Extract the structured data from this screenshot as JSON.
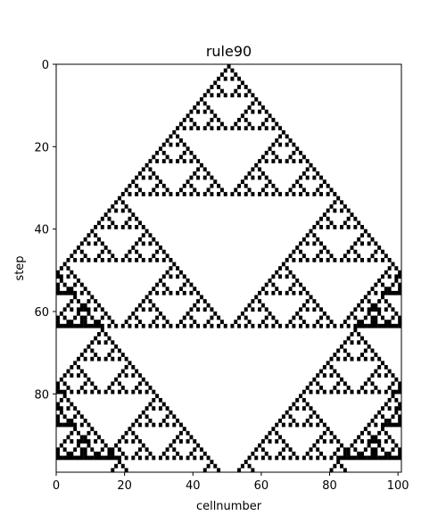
{
  "chart_data": {
    "type": "heatmap",
    "title": "rule90",
    "xlabel": "cellnumber",
    "ylabel": "step",
    "rule": 90,
    "boundary": "periodic",
    "width": 101,
    "steps": 99,
    "initial_state": "single live cell at 50",
    "xlim": [
      0,
      101
    ],
    "ylim": [
      99,
      0
    ],
    "xticks": [
      0,
      20,
      40,
      60,
      80,
      100
    ],
    "yticks": [
      0,
      20,
      40,
      60,
      80
    ],
    "colors": {
      "alive": "#000000",
      "dead": "#ffffff"
    },
    "grid": false
  }
}
